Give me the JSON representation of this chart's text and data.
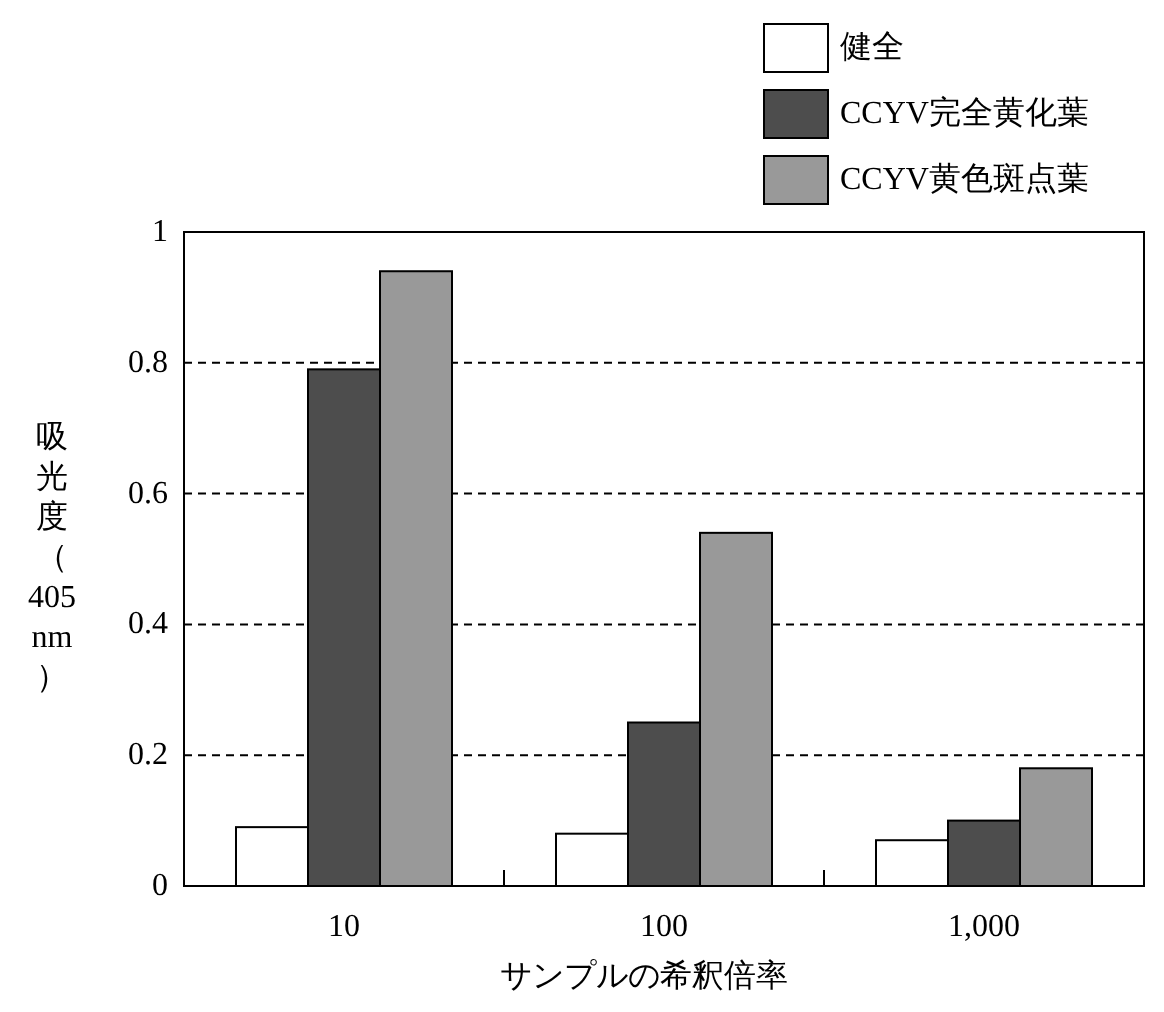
{
  "chart_data": {
    "type": "bar",
    "xlabel": "サンプルの希釈倍率",
    "ylabel": "吸光度（405 nm）",
    "categories": [
      "10",
      "100",
      "1,000"
    ],
    "series": [
      {
        "name": "健全",
        "color": "#ffffff",
        "values": [
          0.09,
          0.08,
          0.07
        ]
      },
      {
        "name": "CCYV完全黄化葉",
        "color": "#4d4d4d",
        "values": [
          0.79,
          0.25,
          0.1
        ]
      },
      {
        "name": "CCYV黄色斑点葉",
        "color": "#999999",
        "values": [
          0.94,
          0.54,
          0.18
        ]
      }
    ],
    "ylim": [
      0,
      1
    ],
    "yticks": [
      0,
      0.2,
      0.4,
      0.6,
      0.8,
      1
    ],
    "grid": "y",
    "legend": "top right"
  }
}
